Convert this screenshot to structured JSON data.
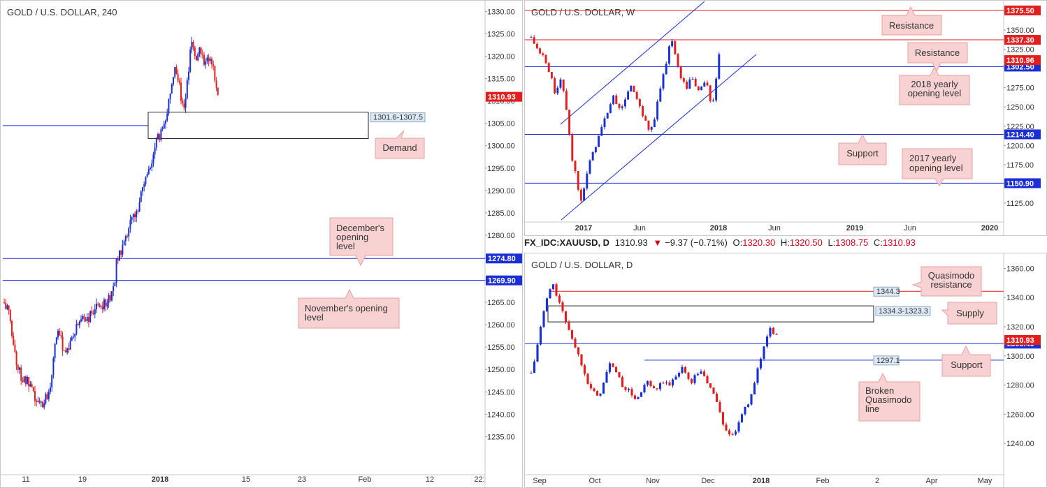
{
  "colors": {
    "bull": "#1a2fd6",
    "bear": "#e21f1f",
    "level_blue": "#1a2fd6",
    "level_red": "#e21f1f",
    "note_fill": "#f8d2d2",
    "note_stroke": "#e7a0a0",
    "box_label_fill": "#dce9f5"
  },
  "chart_data": [
    {
      "id": "h4",
      "type": "candlestick",
      "title": "GOLD / U.S. DOLLAR, 240",
      "ylim": [
        1231,
        1331
      ],
      "yticks": [
        1235,
        1240,
        1245,
        1250,
        1255,
        1260,
        1265,
        1270,
        1275,
        1280,
        1285,
        1290,
        1295,
        1300,
        1305,
        1310,
        1315,
        1320,
        1325,
        1330
      ],
      "xticks": [
        "11",
        "19",
        "2018",
        "15",
        "23",
        "Feb",
        "12",
        "22:"
      ],
      "close_path": [
        [
          0,
          1265
        ],
        [
          8,
          1262
        ],
        [
          14,
          1255
        ],
        [
          20,
          1250
        ],
        [
          26,
          1248
        ],
        [
          34,
          1247
        ],
        [
          42,
          1244
        ],
        [
          50,
          1242
        ],
        [
          58,
          1243
        ],
        [
          66,
          1246
        ],
        [
          74,
          1258
        ],
        [
          80,
          1257
        ],
        [
          88,
          1254
        ],
        [
          96,
          1256
        ],
        [
          104,
          1259
        ],
        [
          112,
          1262
        ],
        [
          120,
          1261
        ],
        [
          128,
          1263
        ],
        [
          136,
          1264
        ],
        [
          144,
          1265
        ],
        [
          152,
          1266
        ],
        [
          158,
          1268
        ],
        [
          162,
          1275
        ],
        [
          168,
          1276
        ],
        [
          174,
          1278
        ],
        [
          180,
          1282
        ],
        [
          186,
          1284
        ],
        [
          192,
          1286
        ],
        [
          198,
          1290
        ],
        [
          204,
          1293
        ],
        [
          210,
          1295
        ],
        [
          216,
          1299
        ],
        [
          220,
          1301
        ],
        [
          226,
          1303
        ],
        [
          232,
          1306
        ],
        [
          236,
          1309
        ],
        [
          240,
          1313
        ],
        [
          246,
          1318
        ],
        [
          252,
          1314
        ],
        [
          258,
          1307
        ],
        [
          262,
          1312
        ],
        [
          266,
          1318
        ],
        [
          270,
          1323
        ],
        [
          276,
          1320
        ],
        [
          282,
          1322
        ],
        [
          288,
          1319
        ],
        [
          294,
          1320
        ],
        [
          300,
          1318
        ],
        [
          304,
          1314
        ],
        [
          308,
          1310.9
        ]
      ],
      "levels": [
        {
          "value": 1274.8,
          "label": "1274.80",
          "color": "blue"
        },
        {
          "value": 1269.9,
          "label": "1269.90",
          "color": "blue"
        }
      ],
      "current": {
        "value": 1310.93,
        "label": "1310.93"
      },
      "zones": [
        {
          "top": 1307.5,
          "bottom": 1301.6,
          "label": "1301.6-1307.5"
        }
      ],
      "notes": [
        "Demand",
        "December's opening level",
        "November's opening level"
      ]
    },
    {
      "id": "weekly",
      "type": "candlestick",
      "title": "GOLD / U.S. DOLLAR, W",
      "ylim": [
        1105,
        1380
      ],
      "yticks": [
        1125,
        1150,
        1175,
        1200,
        1225,
        1250,
        1275,
        1300,
        1325,
        1350
      ],
      "xticks": [
        "2017",
        "Jun",
        "2018",
        "Jun",
        "2019",
        "Jun",
        "2020"
      ],
      "close_path": [
        [
          0,
          1340
        ],
        [
          6,
          1330
        ],
        [
          12,
          1320
        ],
        [
          18,
          1315
        ],
        [
          24,
          1300
        ],
        [
          30,
          1285
        ],
        [
          36,
          1265
        ],
        [
          42,
          1285
        ],
        [
          48,
          1270
        ],
        [
          54,
          1232
        ],
        [
          60,
          1180
        ],
        [
          66,
          1160
        ],
        [
          72,
          1128
        ],
        [
          78,
          1150
        ],
        [
          84,
          1172
        ],
        [
          90,
          1190
        ],
        [
          96,
          1205
        ],
        [
          102,
          1220
        ],
        [
          108,
          1235
        ],
        [
          114,
          1250
        ],
        [
          120,
          1262
        ],
        [
          126,
          1255
        ],
        [
          132,
          1245
        ],
        [
          138,
          1262
        ],
        [
          144,
          1278
        ],
        [
          150,
          1270
        ],
        [
          156,
          1255
        ],
        [
          162,
          1240
        ],
        [
          168,
          1228
        ],
        [
          174,
          1215
        ],
        [
          180,
          1235
        ],
        [
          186,
          1260
        ],
        [
          192,
          1288
        ],
        [
          198,
          1310
        ],
        [
          204,
          1345
        ],
        [
          210,
          1318
        ],
        [
          216,
          1298
        ],
        [
          222,
          1282
        ],
        [
          228,
          1275
        ],
        [
          234,
          1290
        ],
        [
          240,
          1278
        ],
        [
          246,
          1270
        ],
        [
          252,
          1285
        ],
        [
          258,
          1275
        ],
        [
          264,
          1250
        ],
        [
          270,
          1280
        ],
        [
          274,
          1318
        ],
        [
          278,
          1311
        ]
      ],
      "levels": [
        {
          "value": 1375.5,
          "label": "1375.50",
          "color": "red"
        },
        {
          "value": 1337.3,
          "label": "1337.30",
          "color": "red"
        },
        {
          "value": 1302.5,
          "label": "1302.50",
          "color": "blue"
        },
        {
          "value": 1214.4,
          "label": "1214.40",
          "color": "blue"
        },
        {
          "value": 1150.9,
          "label": "1150.90",
          "color": "blue"
        }
      ],
      "current": {
        "value": 1310.96,
        "label": "1310.96"
      },
      "notes": [
        "Resistance",
        "Resistance",
        "2018 yearly opening level",
        "Support",
        "2017 yearly opening level"
      ]
    },
    {
      "id": "daily",
      "type": "candlestick",
      "title": "GOLD / U.S. DOLLAR, D",
      "ylim": [
        1230,
        1365
      ],
      "yticks": [
        1240,
        1260,
        1280,
        1300,
        1320,
        1340,
        1360
      ],
      "xticks": [
        "Sep",
        "Oct",
        "Nov",
        "Dec",
        "2018",
        "Feb",
        "2",
        "Apr",
        "May"
      ],
      "close_path": [
        [
          0,
          1288
        ],
        [
          6,
          1300
        ],
        [
          12,
          1318
        ],
        [
          18,
          1332
        ],
        [
          24,
          1345
        ],
        [
          30,
          1348
        ],
        [
          36,
          1340
        ],
        [
          42,
          1330
        ],
        [
          48,
          1322
        ],
        [
          54,
          1315
        ],
        [
          60,
          1305
        ],
        [
          66,
          1298
        ],
        [
          72,
          1290
        ],
        [
          78,
          1280
        ],
        [
          84,
          1275
        ],
        [
          90,
          1272
        ],
        [
          96,
          1278
        ],
        [
          102,
          1288
        ],
        [
          108,
          1296
        ],
        [
          114,
          1290
        ],
        [
          120,
          1283
        ],
        [
          126,
          1278
        ],
        [
          132,
          1276
        ],
        [
          138,
          1272
        ],
        [
          144,
          1270
        ],
        [
          150,
          1276
        ],
        [
          156,
          1282
        ],
        [
          162,
          1279
        ],
        [
          168,
          1275
        ],
        [
          174,
          1280
        ],
        [
          180,
          1283
        ],
        [
          186,
          1278
        ],
        [
          192,
          1284
        ],
        [
          198,
          1288
        ],
        [
          204,
          1293
        ],
        [
          210,
          1286
        ],
        [
          216,
          1282
        ],
        [
          222,
          1286
        ],
        [
          228,
          1290
        ],
        [
          234,
          1286
        ],
        [
          240,
          1280
        ],
        [
          246,
          1276
        ],
        [
          252,
          1268
        ],
        [
          258,
          1255
        ],
        [
          264,
          1250
        ],
        [
          270,
          1243
        ],
        [
          276,
          1248
        ],
        [
          282,
          1254
        ],
        [
          288,
          1262
        ],
        [
          294,
          1268
        ],
        [
          300,
          1278
        ],
        [
          306,
          1289
        ],
        [
          312,
          1300
        ],
        [
          318,
          1312
        ],
        [
          324,
          1320
        ],
        [
          330,
          1315
        ],
        [
          336,
          1311
        ]
      ],
      "levels": [
        {
          "value": 1344.3,
          "label": "1344.3",
          "color": "red",
          "from": 0.05
        },
        {
          "value": 1308.4,
          "label": "1308.40",
          "color": "blue"
        },
        {
          "value": 1297.1,
          "label": "1297.1",
          "color": "blue",
          "from": 0.25
        }
      ],
      "current": {
        "value": 1310.93,
        "label": "1310.93"
      },
      "zones": [
        {
          "top": 1334.3,
          "bottom": 1323.3,
          "label": "1334.3-1323.3"
        }
      ],
      "notes": [
        "Quasimodo resistance",
        "Supply",
        "Support",
        "Broken Quasimodo line"
      ]
    }
  ],
  "info_bar": {
    "symbol": "FX_IDC:XAUUSD, D",
    "price": "1310.93",
    "arrow": "▼",
    "change": "−9.37 (−0.71%)",
    "o_label": "O:",
    "o_value": "1320.30",
    "h_label": "H:",
    "h_value": "1320.50",
    "l_label": "L:",
    "l_value": "1308.75",
    "c_label": "C:",
    "c_value": "1310.93"
  },
  "notes_text": {
    "demand": "Demand",
    "dec_open": [
      "December's",
      "opening",
      "level"
    ],
    "nov_open": [
      "November's opening",
      "level"
    ],
    "resistance_top": "Resistance",
    "resistance_mid": "Resistance",
    "yearly_2018": [
      "2018 yearly",
      "opening level"
    ],
    "support_w": "Support",
    "yearly_2017": [
      "2017 yearly",
      "opening level"
    ],
    "qm_resistance": [
      "Quasimodo",
      "resistance"
    ],
    "supply": "Supply",
    "support_d": "Support",
    "broken_qm": [
      "Broken",
      "Quasimodo",
      "line"
    ]
  }
}
